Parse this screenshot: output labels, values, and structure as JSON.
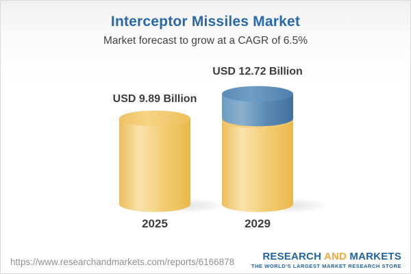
{
  "header": {
    "title": "Interceptor Missiles Market",
    "subtitle": "Market forecast to grow at a CAGR of 6.5%"
  },
  "chart_data": {
    "type": "bar",
    "subtype": "3d-cylinder",
    "title": "Interceptor Missiles Market",
    "subtitle": "Market forecast to grow at a CAGR of 6.5%",
    "unit": "USD Billion",
    "cagr_percent": 6.5,
    "categories": [
      "2025",
      "2029"
    ],
    "values": [
      9.89,
      12.72
    ],
    "bars": [
      {
        "year": "2025",
        "value": 9.89,
        "label": "USD 9.89 Billion",
        "segments": [
          {
            "name": "base",
            "value": 9.89,
            "color": "gold"
          }
        ]
      },
      {
        "year": "2029",
        "value": 12.72,
        "label": "USD 12.72 Billion",
        "segments": [
          {
            "name": "base",
            "value": 9.89,
            "color": "gold"
          },
          {
            "name": "growth",
            "value": 2.83,
            "color": "blue"
          }
        ]
      }
    ],
    "colors": {
      "title_blue": "#2768A9",
      "text_dark": "#3C3C3C",
      "url_gray": "#8F8F8F",
      "logo_blue": "#1F639E",
      "logo_gold": "#F2A93B",
      "cylinder_gold": "#F2C868",
      "cylinder_blue": "#5E90BB",
      "gold_body_stops": [
        "#ECBD5C",
        "#F9E3AC",
        "#F3CD74",
        "#EAB84C"
      ],
      "gold_top_stops": [
        "#EFC366",
        "#F6D385",
        "#EEBF58"
      ],
      "blue_body_stops": [
        "#6F9CC0",
        "#8AB0CF",
        "#5C8BB4",
        "#40719E"
      ],
      "blue_top_stops": [
        "#5A8CB8",
        "#6F9DC4",
        "#4E80AE"
      ]
    }
  },
  "footer": {
    "url": "https://www.researchandmarkets.com/reports/6166878",
    "logo": {
      "word1": "RESEARCH",
      "word2": "AND",
      "word3": "MARKETS",
      "tagline": "THE WORLD'S LARGEST MARKET RESEARCH STORE"
    }
  }
}
